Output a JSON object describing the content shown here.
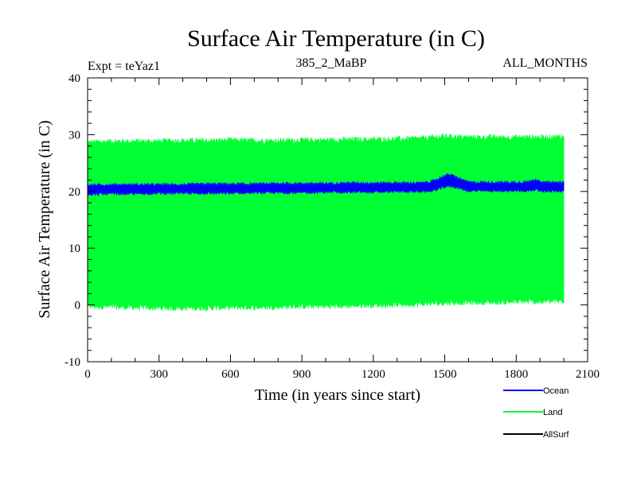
{
  "chart_data": {
    "type": "line",
    "title": "Surface Air Temperature (in C)",
    "subtitle_left": "Expt = teYaz1",
    "subtitle_center": "385_2_MaBP",
    "subtitle_right": "ALL_MONTHS",
    "xlabel": "Time (in years since start)",
    "ylabel": "Surface Air Temperature (in C)",
    "xlim": [
      0,
      2100
    ],
    "ylim": [
      -10,
      40
    ],
    "x_ticks": [
      0,
      300,
      600,
      900,
      1200,
      1500,
      1800,
      2100
    ],
    "x_tick_labels": [
      "0",
      "300",
      "600",
      "900",
      "1200",
      "1500",
      "1800",
      "2100"
    ],
    "y_ticks": [
      -10,
      0,
      10,
      20,
      30,
      40
    ],
    "y_tick_labels": [
      "-10",
      "0",
      "10",
      "20",
      "30",
      "40"
    ],
    "x_minor_step": 100,
    "y_minor_step": 2,
    "series": [
      {
        "name": "Land",
        "color": "#00ff33",
        "x": [
          0,
          100,
          200,
          300,
          400,
          500,
          600,
          700,
          800,
          900,
          1000,
          1100,
          1200,
          1300,
          1400,
          1500,
          1600,
          1700,
          1800,
          1900,
          2000
        ],
        "upper": [
          28.6,
          28.8,
          28.8,
          28.8,
          28.9,
          28.9,
          29.0,
          28.9,
          28.9,
          29.0,
          29.0,
          29.1,
          29.1,
          29.2,
          29.3,
          29.7,
          29.5,
          29.5,
          29.5,
          29.5,
          29.6
        ],
        "lower": [
          -0.2,
          -0.3,
          -0.4,
          -0.5,
          -0.5,
          -0.5,
          -0.4,
          -0.4,
          -0.3,
          -0.2,
          -0.2,
          -0.1,
          0.0,
          0.1,
          0.2,
          0.4,
          0.5,
          0.5,
          0.6,
          0.6,
          0.7
        ]
      },
      {
        "name": "Ocean",
        "color": "#0000ff",
        "x": [
          0,
          100,
          200,
          300,
          400,
          500,
          600,
          700,
          800,
          900,
          1000,
          1100,
          1200,
          1300,
          1400,
          1450,
          1500,
          1520,
          1550,
          1600,
          1700,
          1800,
          1850,
          1880,
          1900,
          2000
        ],
        "upper": [
          21.1,
          21.2,
          21.2,
          21.2,
          21.2,
          21.3,
          21.3,
          21.3,
          21.4,
          21.4,
          21.4,
          21.5,
          21.5,
          21.5,
          21.5,
          21.8,
          22.8,
          23.0,
          22.5,
          21.6,
          21.6,
          21.6,
          21.7,
          22.2,
          21.6,
          21.6
        ],
        "lower": [
          19.5,
          19.6,
          19.6,
          19.7,
          19.7,
          19.7,
          19.7,
          19.8,
          19.8,
          19.8,
          19.9,
          19.9,
          19.9,
          20.0,
          20.0,
          20.1,
          20.8,
          21.0,
          20.7,
          20.1,
          20.1,
          20.1,
          20.1,
          20.4,
          20.1,
          20.0
        ]
      },
      {
        "name": "AllSurf",
        "color": "#000000",
        "x": [],
        "upper": [],
        "lower": []
      }
    ],
    "legend": [
      {
        "label": "Ocean",
        "color": "#0000ff"
      },
      {
        "label": "Land",
        "color": "#00ff33"
      },
      {
        "label": "AllSurf",
        "color": "#000000"
      }
    ],
    "legend_position": "bottom-right"
  }
}
